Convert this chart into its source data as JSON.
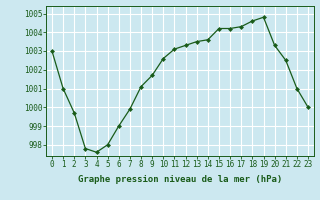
{
  "x": [
    0,
    1,
    2,
    3,
    4,
    5,
    6,
    7,
    8,
    9,
    10,
    11,
    12,
    13,
    14,
    15,
    16,
    17,
    18,
    19,
    20,
    21,
    22,
    23
  ],
  "y": [
    1003.0,
    1001.0,
    999.7,
    997.8,
    997.6,
    998.0,
    999.0,
    999.9,
    1001.1,
    1001.7,
    1002.6,
    1003.1,
    1003.3,
    1003.5,
    1003.6,
    1004.2,
    1004.2,
    1004.3,
    1004.6,
    1004.8,
    1003.3,
    1002.5,
    1001.0,
    1000.0
  ],
  "line_color": "#1a5c1a",
  "marker": "D",
  "marker_size": 2.0,
  "bg_color": "#cce8f0",
  "grid_color": "#ffffff",
  "xlabel": "Graphe pression niveau de la mer (hPa)",
  "xlabel_color": "#1a5c1a",
  "tick_color": "#1a5c1a",
  "ylim": [
    997.4,
    1005.4
  ],
  "yticks": [
    998,
    999,
    1000,
    1001,
    1002,
    1003,
    1004,
    1005
  ],
  "xticks": [
    0,
    1,
    2,
    3,
    4,
    5,
    6,
    7,
    8,
    9,
    10,
    11,
    12,
    13,
    14,
    15,
    16,
    17,
    18,
    19,
    20,
    21,
    22,
    23
  ],
  "tick_fontsize": 5.5,
  "xlabel_fontsize": 6.5
}
